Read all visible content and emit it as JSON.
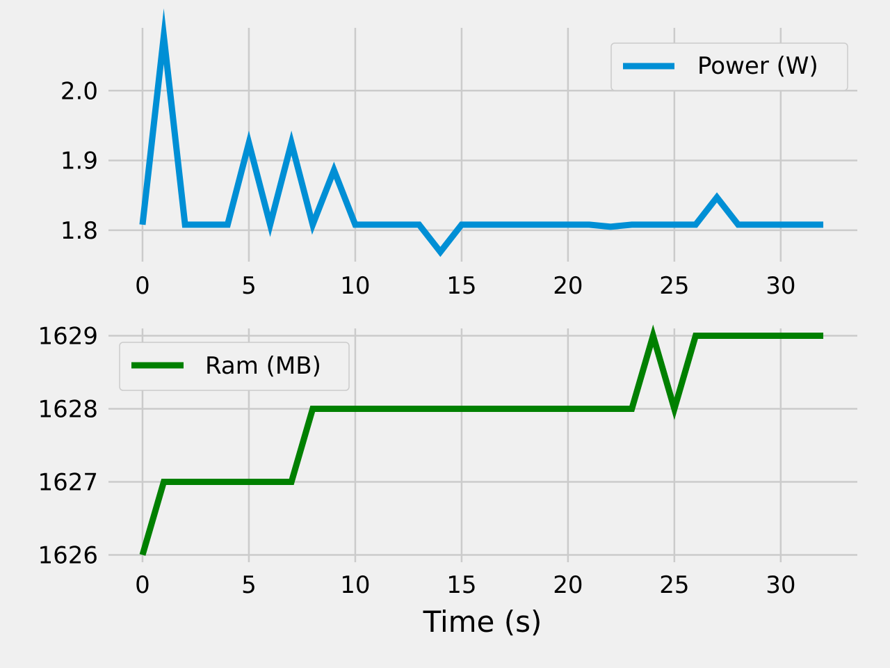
{
  "figure": {
    "background": "#f0f0f0",
    "grid_color": "#cbcbcb",
    "xlabel": "Time (s)"
  },
  "chart_data": [
    {
      "type": "line",
      "title": "",
      "xlabel": "",
      "ylabel": "",
      "x": [
        0,
        1,
        2,
        3,
        4,
        5,
        6,
        7,
        8,
        9,
        10,
        11,
        12,
        13,
        14,
        15,
        16,
        17,
        18,
        19,
        20,
        21,
        22,
        23,
        24,
        25,
        26,
        27,
        28,
        29,
        30,
        31,
        32
      ],
      "xlim": [
        -1.6,
        33.6
      ],
      "ylim": [
        1.755,
        2.09
      ],
      "xticks": [
        0,
        5,
        10,
        15,
        20,
        25,
        30
      ],
      "yticks": [
        1.8,
        1.9,
        2.0
      ],
      "yticklabels": [
        "1.8",
        "1.9",
        "2.0"
      ],
      "grid": true,
      "legend": "upper right",
      "series": [
        {
          "name": "Power (W)",
          "color": "#008fd5",
          "values": [
            1.808,
            2.078,
            1.808,
            1.808,
            1.808,
            1.925,
            1.808,
            1.925,
            1.808,
            1.886,
            1.808,
            1.808,
            1.808,
            1.808,
            1.769,
            1.808,
            1.808,
            1.808,
            1.808,
            1.808,
            1.808,
            1.808,
            1.805,
            1.808,
            1.808,
            1.808,
            1.808,
            1.847,
            1.808,
            1.808,
            1.808,
            1.808,
            1.808
          ]
        }
      ]
    },
    {
      "type": "line",
      "title": "",
      "xlabel": "Time (s)",
      "ylabel": "",
      "x": [
        0,
        1,
        2,
        3,
        4,
        5,
        6,
        7,
        8,
        9,
        10,
        11,
        12,
        13,
        14,
        15,
        16,
        17,
        18,
        19,
        20,
        21,
        22,
        23,
        24,
        25,
        26,
        27,
        28,
        29,
        30,
        31,
        32
      ],
      "xlim": [
        -1.6,
        33.6
      ],
      "ylim": [
        1625.9,
        1629.1
      ],
      "xticks": [
        0,
        5,
        10,
        15,
        20,
        25,
        30
      ],
      "yticks": [
        1626,
        1627,
        1628,
        1629
      ],
      "yticklabels": [
        "1626",
        "1627",
        "1628",
        "1629"
      ],
      "grid": true,
      "legend": "upper left",
      "series": [
        {
          "name": "Ram (MB)",
          "color": "#008000",
          "values": [
            1626,
            1627,
            1627,
            1627,
            1627,
            1627,
            1627,
            1627,
            1628,
            1628,
            1628,
            1628,
            1628,
            1628,
            1628,
            1628,
            1628,
            1628,
            1628,
            1628,
            1628,
            1628,
            1628,
            1628,
            1629,
            1628,
            1629,
            1629,
            1629,
            1629,
            1629,
            1629,
            1629
          ]
        }
      ]
    }
  ]
}
